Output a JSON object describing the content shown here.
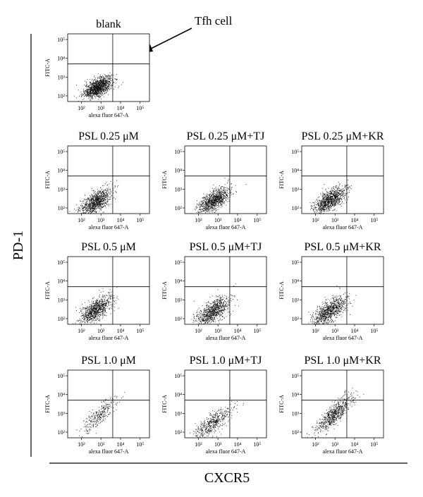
{
  "figure": {
    "y_axis_title": "PD-1",
    "x_axis_title": "CXCR5",
    "annotation": "Tfh cell",
    "panel_xlabel": "alexa fluor 647-A",
    "panel_ylabel": "FITC-A",
    "tick_labels": [
      "10²",
      "10³",
      "10⁴",
      "10⁵"
    ]
  },
  "chart_data": [
    {
      "type": "scatter",
      "title": "blank",
      "xlabel": "alexa fluor 647-A",
      "ylabel": "FITC-A",
      "xscale": "log",
      "yscale": "log",
      "xlim": [
        20,
        300000
      ],
      "ylim": [
        50,
        200000
      ],
      "gate": {
        "x": 4000,
        "y": 5000
      },
      "cloud": {
        "cx": 700,
        "cy": 300,
        "spread_x": 0.35,
        "spread_y": 0.28,
        "tilt": 0.45,
        "n": 1300
      }
    },
    {
      "type": "scatter",
      "title": "PSL 0.25 μM",
      "xlabel": "alexa fluor 647-A",
      "ylabel": "FITC-A",
      "xscale": "log",
      "yscale": "log",
      "xlim": [
        20,
        300000
      ],
      "ylim": [
        50,
        200000
      ],
      "gate": {
        "x": 4000,
        "y": 5000
      },
      "cloud": {
        "cx": 500,
        "cy": 200,
        "spread_x": 0.4,
        "spread_y": 0.35,
        "tilt": 0.55,
        "n": 1000
      }
    },
    {
      "type": "scatter",
      "title": "PSL 0.25 μM+TJ",
      "xlabel": "alexa fluor 647-A",
      "ylabel": "FITC-A",
      "xscale": "log",
      "yscale": "log",
      "xlim": [
        20,
        300000
      ],
      "ylim": [
        50,
        200000
      ],
      "gate": {
        "x": 4000,
        "y": 5000
      },
      "cloud": {
        "cx": 600,
        "cy": 250,
        "spread_x": 0.4,
        "spread_y": 0.35,
        "tilt": 0.6,
        "n": 1000
      }
    },
    {
      "type": "scatter",
      "title": "PSL 0.25 μM+KR",
      "xlabel": "alexa fluor 647-A",
      "ylabel": "FITC-A",
      "xscale": "log",
      "yscale": "log",
      "xlim": [
        20,
        300000
      ],
      "ylim": [
        50,
        200000
      ],
      "gate": {
        "x": 4000,
        "y": 5000
      },
      "cloud": {
        "cx": 500,
        "cy": 250,
        "spread_x": 0.4,
        "spread_y": 0.35,
        "tilt": 0.55,
        "n": 1000
      }
    },
    {
      "type": "scatter",
      "title": "PSL 0.5 μM",
      "xlabel": "alexa fluor 647-A",
      "ylabel": "FITC-A",
      "xscale": "log",
      "yscale": "log",
      "xlim": [
        20,
        300000
      ],
      "ylim": [
        50,
        200000
      ],
      "gate": {
        "x": 4000,
        "y": 5000
      },
      "cloud": {
        "cx": 500,
        "cy": 300,
        "spread_x": 0.4,
        "spread_y": 0.38,
        "tilt": 0.6,
        "n": 900
      }
    },
    {
      "type": "scatter",
      "title": "PSL 0.5 μM+TJ",
      "xlabel": "alexa fluor 647-A",
      "ylabel": "FITC-A",
      "xscale": "log",
      "yscale": "log",
      "xlim": [
        20,
        300000
      ],
      "ylim": [
        50,
        200000
      ],
      "gate": {
        "x": 4000,
        "y": 5000
      },
      "cloud": {
        "cx": 500,
        "cy": 250,
        "spread_x": 0.42,
        "spread_y": 0.38,
        "tilt": 0.55,
        "n": 900
      }
    },
    {
      "type": "scatter",
      "title": "PSL 0.5 μM+KR",
      "xlabel": "alexa fluor 647-A",
      "ylabel": "FITC-A",
      "xscale": "log",
      "yscale": "log",
      "xlim": [
        20,
        300000
      ],
      "ylim": [
        50,
        200000
      ],
      "gate": {
        "x": 4000,
        "y": 5000
      },
      "cloud": {
        "cx": 500,
        "cy": 250,
        "spread_x": 0.42,
        "spread_y": 0.38,
        "tilt": 0.6,
        "n": 900
      }
    },
    {
      "type": "scatter",
      "title": "PSL 1.0 μM",
      "xlabel": "alexa fluor 647-A",
      "ylabel": "FITC-A",
      "xscale": "log",
      "yscale": "log",
      "xlim": [
        20,
        300000
      ],
      "ylim": [
        50,
        200000
      ],
      "gate": {
        "x": 4000,
        "y": 5000
      },
      "cloud": {
        "cx": 800,
        "cy": 800,
        "spread_x": 0.45,
        "spread_y": 0.4,
        "tilt": 0.85,
        "n": 300
      }
    },
    {
      "type": "scatter",
      "title": "PSL 1.0 μM+TJ",
      "xlabel": "alexa fluor 647-A",
      "ylabel": "FITC-A",
      "xscale": "log",
      "yscale": "log",
      "xlim": [
        20,
        300000
      ],
      "ylim": [
        50,
        200000
      ],
      "gate": {
        "x": 4000,
        "y": 5000
      },
      "cloud": {
        "cx": 500,
        "cy": 300,
        "spread_x": 0.45,
        "spread_y": 0.4,
        "tilt": 0.7,
        "n": 500
      }
    },
    {
      "type": "scatter",
      "title": "PSL 1.0 μM+KR",
      "xlabel": "alexa fluor 647-A",
      "ylabel": "FITC-A",
      "xscale": "log",
      "yscale": "log",
      "xlim": [
        20,
        300000
      ],
      "ylim": [
        50,
        200000
      ],
      "gate": {
        "x": 4000,
        "y": 5000
      },
      "cloud": {
        "cx": 900,
        "cy": 900,
        "spread_x": 0.45,
        "spread_y": 0.4,
        "tilt": 0.85,
        "n": 700
      }
    }
  ]
}
